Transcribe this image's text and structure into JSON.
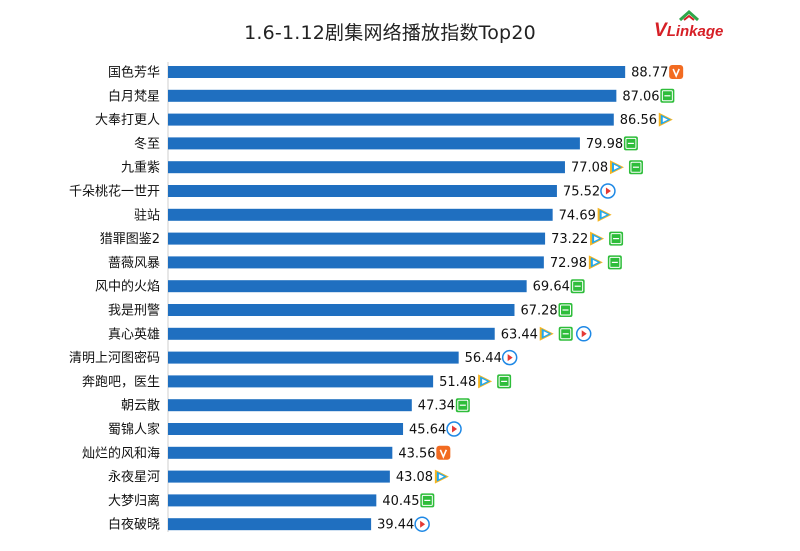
{
  "chart_data": {
    "type": "bar",
    "orientation": "horizontal",
    "title": "1.6-1.12剧集网络播放指数Top20",
    "xlim": [
      0,
      100
    ],
    "bar_color": "#1f6fc0",
    "categories": [
      "国色芳华",
      "白月梵星",
      "大奉打更人",
      "冬至",
      "九重紫",
      "千朵桃花一世开",
      "驻站",
      "猎罪图鉴2",
      "蔷薇风暴",
      "风中的火焰",
      "我是刑警",
      "真心英雄",
      "清明上河图密码",
      "奔跑吧，医生",
      "朝云散",
      "蜀锦人家",
      "灿烂的风和海",
      "永夜星河",
      "大梦归离",
      "白夜破晓"
    ],
    "values": [
      88.77,
      87.06,
      86.56,
      79.98,
      77.08,
      75.52,
      74.69,
      73.22,
      72.98,
      69.64,
      67.28,
      63.44,
      56.44,
      51.48,
      47.34,
      45.64,
      43.56,
      43.08,
      40.45,
      39.44
    ],
    "value_labels": [
      "88.77",
      "87.06",
      "86.56",
      "79.98",
      "77.08",
      "75.52",
      "74.69",
      "73.22",
      "72.98",
      "69.64",
      "67.28",
      "63.44",
      "56.44",
      "51.48",
      "47.34",
      "45.64",
      "43.56",
      "43.08",
      "40.45",
      "39.44"
    ],
    "platforms": [
      [
        "mgtv"
      ],
      [
        "iqiyi"
      ],
      [
        "tencent"
      ],
      [
        "iqiyi"
      ],
      [
        "tencent",
        "iqiyi"
      ],
      [
        "youku"
      ],
      [
        "tencent"
      ],
      [
        "tencent",
        "iqiyi"
      ],
      [
        "tencent",
        "iqiyi"
      ],
      [
        "iqiyi"
      ],
      [
        "iqiyi"
      ],
      [
        "tencent",
        "iqiyi",
        "youku"
      ],
      [
        "youku"
      ],
      [
        "tencent",
        "iqiyi"
      ],
      [
        "iqiyi"
      ],
      [
        "youku"
      ],
      [
        "mgtv"
      ],
      [
        "tencent"
      ],
      [
        "iqiyi"
      ],
      [
        "youku"
      ]
    ],
    "platform_icons": {
      "mgtv": {
        "icon": "mgtv-icon",
        "color": "#f26b21",
        "glyph": "tv"
      },
      "iqiyi": {
        "icon": "iqiyi-icon",
        "color": "#2ebd3a",
        "glyph": "QIY"
      },
      "tencent": {
        "icon": "tencent-video-icon",
        "color": "#20a7ee"
      },
      "youku": {
        "icon": "youku-icon",
        "color": "#1e88e5"
      }
    }
  },
  "logo": {
    "v": "V",
    "rest": "Linkage"
  }
}
